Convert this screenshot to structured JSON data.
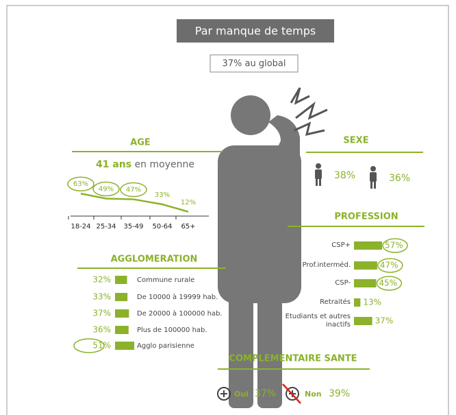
{
  "title": "Par manque de temps",
  "global": "37% au global",
  "age": {
    "title": "AGE",
    "mean": "41 ans",
    "mean_suffix": "en moyenne",
    "categories": [
      "18-24",
      "25-34",
      "35-49",
      "50-64",
      "65+"
    ],
    "values": [
      63,
      49,
      47,
      33,
      12
    ],
    "value_labels": [
      "63%",
      "49%",
      "47%",
      "33%",
      "12%"
    ],
    "circled": [
      true,
      true,
      true,
      false,
      false
    ]
  },
  "sexe": {
    "title": "SEXE",
    "values": [
      38,
      36
    ],
    "value_labels": [
      "38%",
      "36%"
    ]
  },
  "profession": {
    "title": "PROFESSION",
    "categories": [
      "CSP+",
      "Prof.interméd.",
      "CSP-",
      "Retraités",
      "Etudiants et autres inactifs"
    ],
    "values": [
      57,
      47,
      45,
      13,
      37
    ],
    "value_labels": [
      "57%",
      "47%",
      "45%",
      "13%",
      "37%"
    ],
    "circled": [
      true,
      true,
      true,
      false,
      false
    ]
  },
  "agglomeration": {
    "title": "AGGLOMERATION",
    "categories": [
      "Commune rurale",
      "De 10000 à 19999 hab.",
      "De 20000 à 100000 hab.",
      "Plus de 100000 hab.",
      "Agglo parisienne"
    ],
    "values": [
      32,
      33,
      37,
      36,
      51
    ],
    "value_labels": [
      "32%",
      "33%",
      "37%",
      "36%",
      "51%"
    ],
    "circled": [
      false,
      false,
      false,
      false,
      true
    ]
  },
  "complementaire": {
    "title": "COMPLEMENTAIRE SANTE",
    "items": [
      {
        "label": "Oui",
        "value": 37,
        "value_label": "37%"
      },
      {
        "label": "Non",
        "value": 39,
        "value_label": "39%"
      }
    ]
  },
  "color": "#8bb22a"
}
